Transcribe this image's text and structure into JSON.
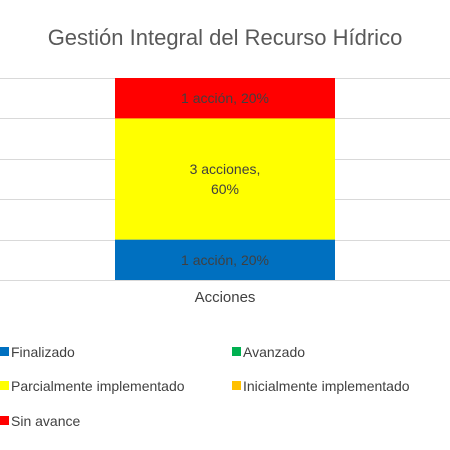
{
  "chart_data": {
    "type": "bar",
    "stacked": "percent",
    "title": "Gestión Integral del Recurso Hídrico",
    "categories": [
      "Acciones"
    ],
    "ylim": [
      0,
      100
    ],
    "grid": true,
    "legend_position": "bottom",
    "series": [
      {
        "name": "Finalizado",
        "values": [
          1
        ],
        "percent": [
          20
        ],
        "label": "1 acción, 20%",
        "color": "#0070C0"
      },
      {
        "name": "Avanzado",
        "values": [
          0
        ],
        "percent": [
          0
        ],
        "label": "",
        "color": "#00B050"
      },
      {
        "name": "Parcialmente implementado",
        "values": [
          3
        ],
        "percent": [
          60
        ],
        "label_lines": [
          "3 acciones,",
          "60%"
        ],
        "color": "#FFFF00"
      },
      {
        "name": "Inicialmente implementado",
        "values": [
          0
        ],
        "percent": [
          0
        ],
        "label": "",
        "color": "#FFC000"
      },
      {
        "name": "Sin avance",
        "values": [
          1
        ],
        "percent": [
          20
        ],
        "label": "1 acción, 20%",
        "color": "#FF0000"
      }
    ]
  }
}
